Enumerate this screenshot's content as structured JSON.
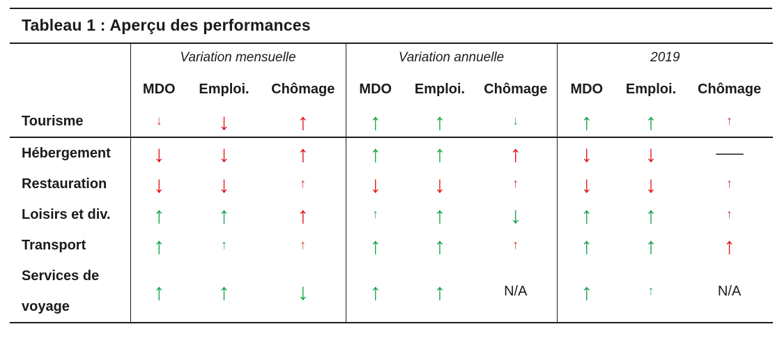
{
  "title": "Tableau 1 : Aperçu des performances",
  "glyphs": {
    "up": "↑",
    "down": "↓",
    "dash": "—",
    "na": "N/A"
  },
  "colors": {
    "green_big": "#18a54f",
    "green_small": "#35aa6b",
    "red_big": "#e3181c",
    "red_small": "#c8423a",
    "border": "#1c1c1c",
    "text": "#1b1b1b"
  },
  "table": {
    "groups": [
      {
        "label": "Variation mensuelle",
        "columns": [
          "MDO",
          "Emploi.",
          "Chômage"
        ]
      },
      {
        "label": "Variation annuelle",
        "columns": [
          "MDO",
          "Emploi.",
          "Chômage"
        ]
      },
      {
        "label": "2019",
        "columns": [
          "MDO",
          "Emploi.",
          "Chômage"
        ]
      }
    ],
    "rows": [
      {
        "label": "Tourisme",
        "separator_below": true,
        "cells": [
          "down.red.small",
          "down.red.big",
          "up.red.big",
          "up.green.big",
          "up.green.big",
          "down.green.small",
          "up.green.big",
          "up.green.big",
          "up.red.small"
        ]
      },
      {
        "label": "Hébergement",
        "cells": [
          "down.red.big",
          "down.red.big",
          "up.red.big",
          "up.green.big",
          "up.green.big",
          "up.red.big",
          "down.red.big",
          "down.red.big",
          "dash"
        ]
      },
      {
        "label": "Restauration",
        "cells": [
          "down.red.big",
          "down.red.big",
          "up.red.small",
          "down.red.big",
          "down.red.big",
          "up.red.small",
          "down.red.big",
          "down.red.big",
          "up.red.small"
        ]
      },
      {
        "label": "Loisirs et div.",
        "cells": [
          "up.green.big",
          "up.green.big",
          "up.red.big",
          "up.green.small",
          "up.green.big",
          "down.green.big",
          "up.green.big",
          "up.green.big",
          "up.red.small"
        ]
      },
      {
        "label": "Transport",
        "cells": [
          "up.green.big",
          "up.green.small",
          "up.red.small",
          "up.green.big",
          "up.green.big",
          "up.red.small",
          "up.green.big",
          "up.green.big",
          "up.red.big"
        ]
      },
      {
        "label": "Services de voyage",
        "cells": [
          "up.green.big",
          "up.green.big",
          "down.green.big",
          "up.green.big",
          "up.green.big",
          "na",
          "up.green.big",
          "up.green.small",
          "na"
        ]
      }
    ]
  }
}
